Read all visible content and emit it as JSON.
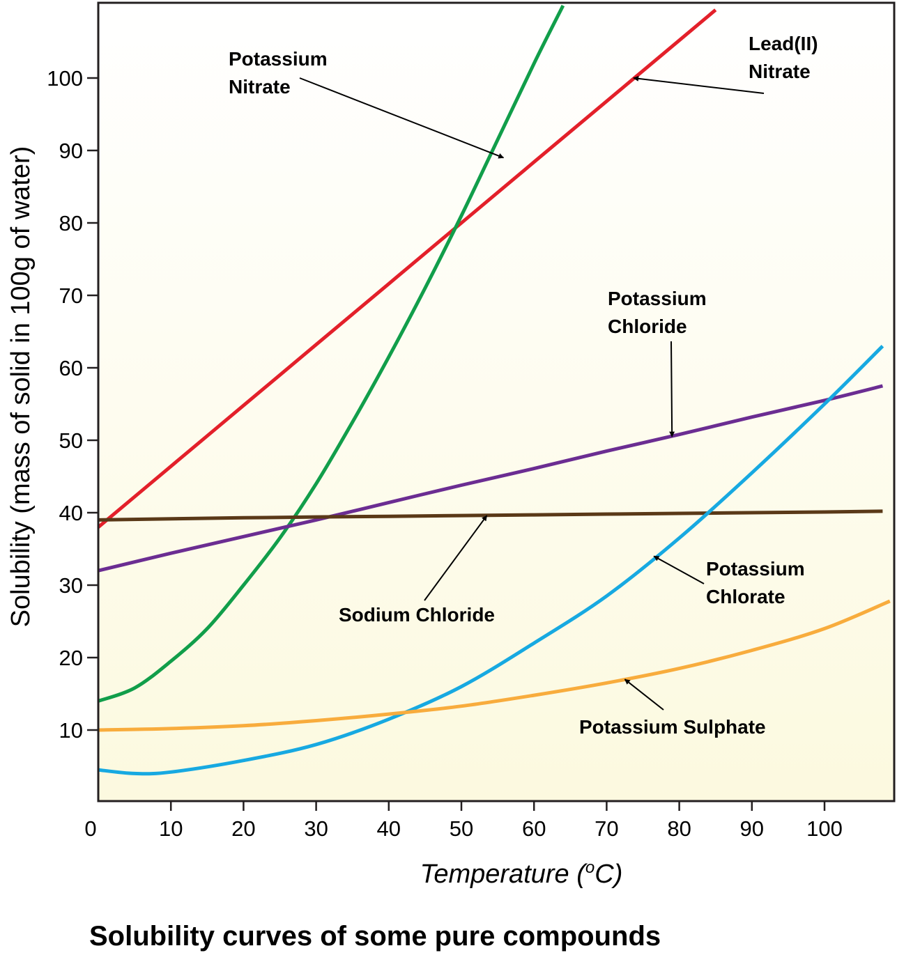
{
  "chart_data": {
    "type": "line",
    "title": "Solubility curves of some pure compounds",
    "xlabel_main": "Temperature (",
    "xlabel_sup": "o",
    "xlabel_end": "C)",
    "ylabel": "Solubility (mass of solid in 100g of water)",
    "xlim": [
      0,
      109
    ],
    "ylim": [
      0,
      110
    ],
    "xticks": [
      0,
      10,
      20,
      30,
      40,
      50,
      60,
      70,
      80,
      90,
      100
    ],
    "yticks": [
      10,
      20,
      30,
      40,
      50,
      60,
      70,
      80,
      90,
      100
    ],
    "grid": false,
    "background": "#fdfbe6",
    "series": [
      {
        "id": "lead-nitrate",
        "name": "Lead(II) Nitrate",
        "color": "#e3202a",
        "x": [
          0,
          10,
          20,
          30,
          40,
          50,
          60,
          70,
          80,
          85
        ],
        "y": [
          38,
          46.4,
          54.8,
          63.2,
          71.6,
          80,
          88.4,
          96.8,
          105.2,
          109.4
        ]
      },
      {
        "id": "potassium-nitrate",
        "name": "Potassium Nitrate",
        "color": "#119e4a",
        "x": [
          0,
          5,
          10,
          15,
          20,
          25,
          30,
          35,
          40,
          45,
          50,
          55,
          60,
          64
        ],
        "y": [
          14,
          15.8,
          19.5,
          24,
          30,
          36.5,
          44,
          52.5,
          61.5,
          71,
          81,
          91.5,
          102,
          110
        ]
      },
      {
        "id": "potassium-chloride",
        "name": "Potassium Chloride",
        "color": "#6b2d92",
        "x": [
          0,
          10,
          20,
          30,
          40,
          50,
          60,
          70,
          80,
          90,
          100,
          108
        ],
        "y": [
          32,
          34.4,
          36.7,
          39,
          41.4,
          43.8,
          46.1,
          48.5,
          50.8,
          53.2,
          55.5,
          57.5
        ]
      },
      {
        "id": "sodium-chloride",
        "name": "Sodium Chloride",
        "color": "#5a3918",
        "x": [
          0,
          20,
          40,
          60,
          80,
          100,
          108
        ],
        "y": [
          39,
          39.3,
          39.5,
          39.7,
          39.9,
          40.1,
          40.2
        ]
      },
      {
        "id": "potassium-chlorate",
        "name": "Potassium Chlorate",
        "color": "#17a9e1",
        "x": [
          0,
          5,
          10,
          20,
          30,
          40,
          50,
          60,
          70,
          80,
          90,
          100,
          108
        ],
        "y": [
          4.5,
          4,
          4.2,
          5.8,
          8,
          11.5,
          16,
          22,
          28.5,
          36.5,
          45.5,
          55,
          63
        ]
      },
      {
        "id": "potassium-sulphate",
        "name": "Potassium Sulphate",
        "color": "#f8ac3d",
        "x": [
          0,
          10,
          20,
          30,
          40,
          50,
          60,
          70,
          80,
          90,
          100,
          109
        ],
        "y": [
          10,
          10.2,
          10.6,
          11.3,
          12.2,
          13.3,
          14.8,
          16.5,
          18.5,
          21,
          24,
          27.8
        ]
      }
    ],
    "annotations": [
      {
        "id": "potassium-nitrate",
        "lines": [
          "Potassium",
          "Nitrate"
        ],
        "pointer": [
          55.8,
          89
        ]
      },
      {
        "id": "lead-nitrate",
        "lines": [
          "Lead(II)",
          "Nitrate"
        ],
        "pointer": [
          73.7,
          100
        ]
      },
      {
        "id": "potassium-chloride",
        "lines": [
          "Potassium",
          "Chloride"
        ],
        "pointer": [
          79,
          50.5
        ]
      },
      {
        "id": "sodium-chloride",
        "lines": [
          "Sodium Chloride"
        ],
        "pointer": [
          53.5,
          39.6
        ]
      },
      {
        "id": "potassium-chlorate",
        "lines": [
          "Potassium",
          "Chlorate"
        ],
        "pointer": [
          76.5,
          34
        ]
      },
      {
        "id": "potassium-sulphate",
        "lines": [
          "Potassium Sulphate"
        ],
        "pointer": [
          72.5,
          17
        ]
      }
    ]
  }
}
